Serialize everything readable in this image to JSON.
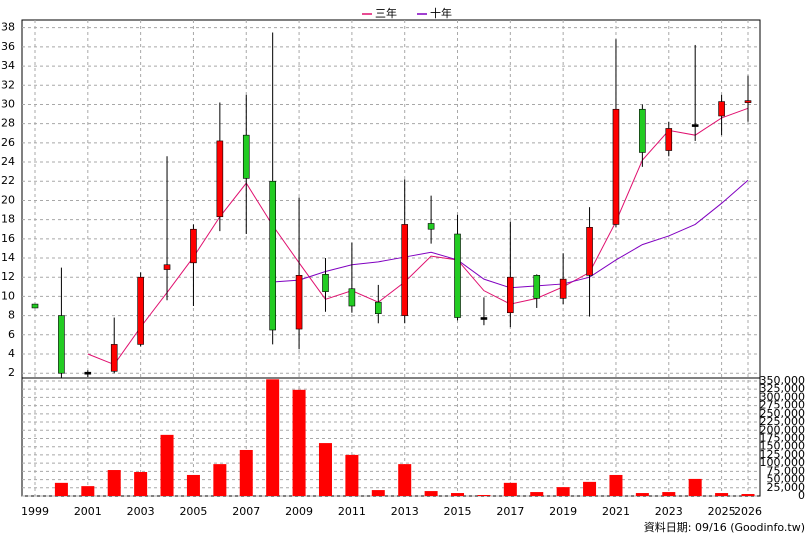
{
  "chart_data": [
    {
      "type": "candlestick",
      "categories": [
        "1999",
        null,
        "2001",
        null,
        "2003",
        null,
        "2005",
        null,
        "2007",
        null,
        "2009",
        null,
        "2011",
        null,
        "2013",
        null,
        "2015",
        null,
        "2017",
        null,
        "2019",
        null,
        "2021",
        null,
        "2023",
        null,
        "2025",
        "2026"
      ],
      "open": [
        9.2,
        8,
        2,
        2.2,
        5,
        12.8,
        13.5,
        18.3,
        26.8,
        22,
        6.6,
        12.3,
        10.8,
        9.4,
        8,
        17.6,
        16.5,
        7.7,
        8.3,
        12.2,
        9.8,
        12.2,
        17.5,
        29.5,
        25.2,
        27.8,
        28.8,
        30.2
      ],
      "high": [
        9.2,
        13,
        2.3,
        7.8,
        12.5,
        24.6,
        17.5,
        30.2,
        31,
        37.5,
        20.3,
        14,
        15.6,
        11.2,
        22.2,
        20.5,
        18.5,
        9.9,
        17.8,
        12.3,
        14.5,
        19.3,
        36.8,
        30,
        28.2,
        36.2,
        31,
        33
      ],
      "low": [
        8.8,
        1.5,
        1.6,
        2,
        4.8,
        9.6,
        9,
        16.8,
        16.5,
        5,
        4.5,
        8.4,
        8.3,
        7.2,
        7.2,
        15.5,
        7.5,
        7,
        6.8,
        8.8,
        9.2,
        7.9,
        17.2,
        23.5,
        24.6,
        26.2,
        26.8,
        28.2
      ],
      "close": [
        8.8,
        2,
        2,
        5,
        12,
        13.3,
        17,
        26.2,
        22.3,
        6.5,
        12.2,
        10.5,
        9,
        8.2,
        17.5,
        17,
        7.8,
        7.7,
        12,
        9.8,
        11.8,
        17.2,
        29.5,
        25,
        27.5,
        27.8,
        30.3,
        30.4
      ],
      "up_color": "#ff0000",
      "down_color": "#22cc22",
      "flat_color": "#000000",
      "series": [
        {
          "name": "三年",
          "color": "#e0106f",
          "values": [
            null,
            null,
            4,
            2.9,
            6.8,
            10.4,
            14.1,
            18.3,
            21.8,
            17.4,
            13.5,
            9.7,
            10.6,
            9.4,
            11.5,
            14.2,
            13.8,
            10.6,
            9.2,
            9.8,
            11,
            12.5,
            17.8,
            24.2,
            27.3,
            26.8,
            28.6,
            29.6
          ]
        },
        {
          "name": "十年",
          "color": "#8000c0",
          "values": [
            null,
            null,
            null,
            null,
            null,
            null,
            null,
            null,
            null,
            11.5,
            11.7,
            12.6,
            13.3,
            13.6,
            14.1,
            14.6,
            13.8,
            11.8,
            10.9,
            11.1,
            11.3,
            12,
            13.8,
            15.4,
            16.3,
            17.5,
            19.7,
            22.1
          ]
        }
      ],
      "ylim": [
        1.5,
        38.8
      ],
      "yticks": [
        2,
        4,
        6,
        8,
        10,
        12,
        14,
        16,
        18,
        20,
        22,
        24,
        26,
        28,
        30,
        32,
        34,
        36,
        38
      ],
      "grid": true,
      "legend": "top",
      "source": "資料日期: 09/16 (Goodinfo.tw)"
    },
    {
      "type": "bar",
      "values": [
        null,
        40000,
        30000,
        79000,
        73000,
        186000,
        64000,
        97000,
        140000,
        355000,
        323000,
        161000,
        125000,
        18000,
        97000,
        15000,
        9000,
        3000,
        40000,
        12000,
        27000,
        43000,
        64000,
        9000,
        12000,
        52000,
        9000,
        6000
      ],
      "color": "#ff0000",
      "ylim": [
        0,
        359000
      ],
      "yticks": [
        0,
        {
          "value": 25000,
          "label": "25,000"
        },
        {
          "value": 50000,
          "label": "50,000"
        },
        {
          "value": 75000,
          "label": "75,000"
        },
        {
          "value": 100000,
          "label": "100,000"
        },
        {
          "value": 125000,
          "label": "125,000"
        },
        {
          "value": 150000,
          "label": "150,000"
        },
        {
          "value": 175000,
          "label": "175,000"
        },
        {
          "value": 200000,
          "label": "200,000"
        },
        {
          "value": 225000,
          "label": "225,000"
        },
        {
          "value": 250000,
          "label": "250,000"
        },
        {
          "value": 275000,
          "label": "275,000"
        },
        {
          "value": 300000,
          "label": "300,000"
        },
        {
          "value": 325000,
          "label": "325,000"
        },
        {
          "value": 350000,
          "label": "350,000"
        }
      ],
      "grid": true
    }
  ]
}
